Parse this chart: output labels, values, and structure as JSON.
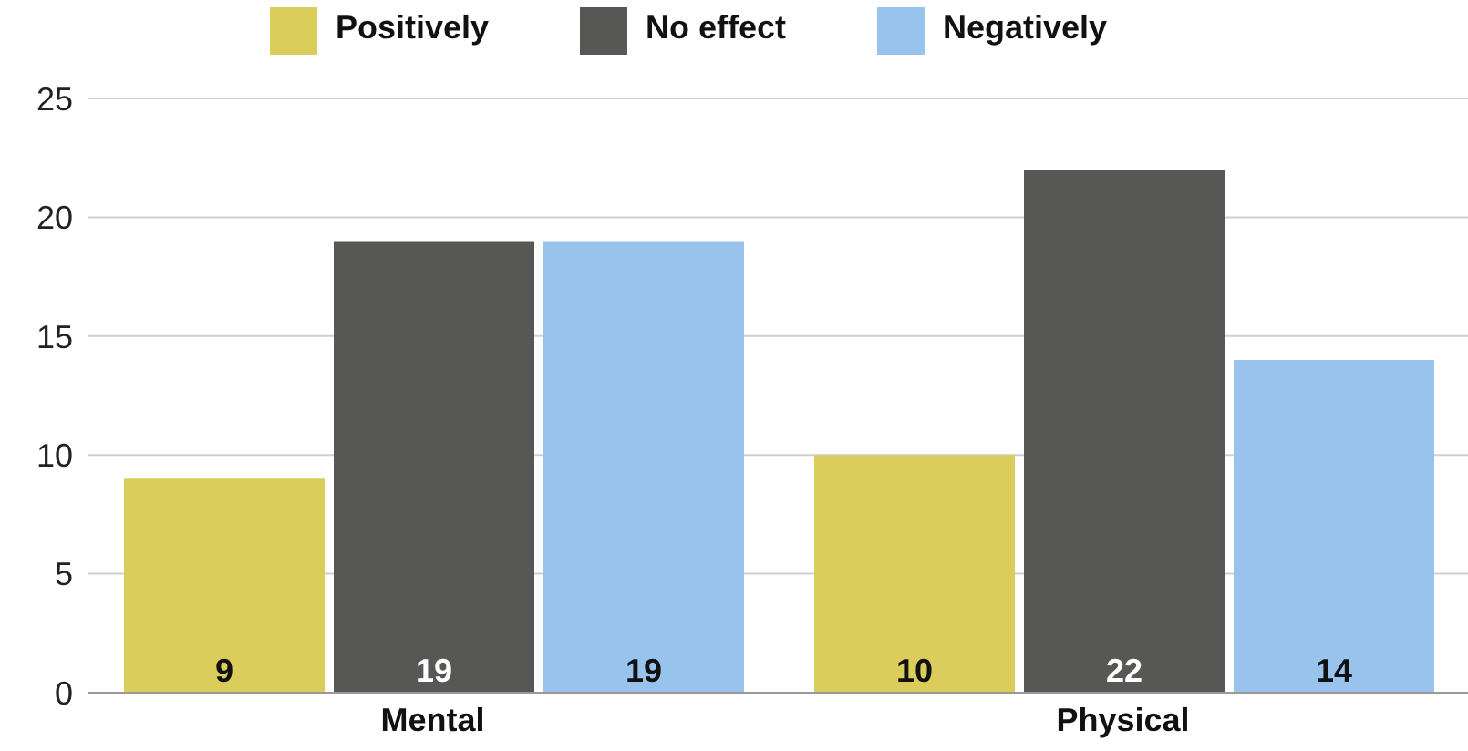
{
  "chart_data": {
    "type": "bar",
    "categories": [
      "Mental",
      "Physical"
    ],
    "series": [
      {
        "name": "Positively",
        "color": "#dbcd5c",
        "values": [
          9,
          10
        ]
      },
      {
        "name": "No effect",
        "color": "#575756",
        "values": [
          19,
          22
        ]
      },
      {
        "name": "Negatively",
        "color": "#97c3ed",
        "values": [
          19,
          14
        ]
      }
    ],
    "ylim": [
      0,
      25
    ],
    "yticks": [
      0,
      5,
      10,
      15,
      20,
      25
    ],
    "grid": "y",
    "legend": "top",
    "data_labels": true
  }
}
